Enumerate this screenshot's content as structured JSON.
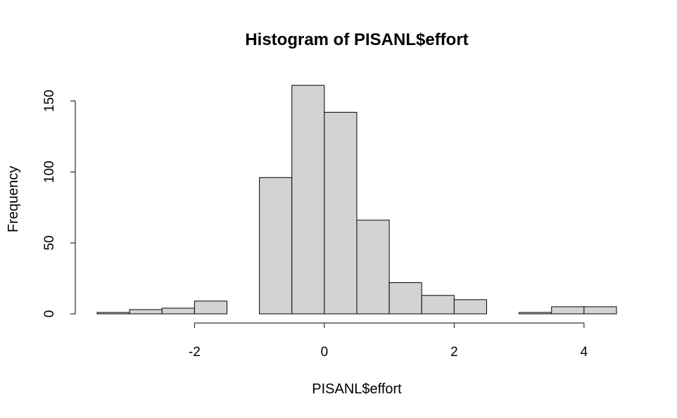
{
  "chart_data": {
    "type": "bar",
    "title": "Histogram of PISANL$effort",
    "xlabel": "PISANL$effort",
    "ylabel": "Frequency",
    "bin_edges": [
      -3.5,
      -3.0,
      -2.5,
      -2.0,
      -1.5,
      -1.0,
      -0.5,
      0.0,
      0.5,
      1.0,
      1.5,
      2.0,
      2.5,
      3.0,
      3.5,
      4.0,
      4.5
    ],
    "values": [
      1,
      3,
      4,
      9,
      0,
      96,
      161,
      142,
      66,
      22,
      13,
      10,
      0,
      1,
      5,
      5
    ],
    "xlim": [
      -3.5,
      4.5
    ],
    "ylim": [
      0,
      161
    ],
    "x_ticks": [
      -2,
      0,
      2,
      4
    ],
    "x_tick_labels": [
      "-2",
      "0",
      "2",
      "4"
    ],
    "y_ticks": [
      0,
      50,
      100,
      150
    ],
    "y_tick_labels": [
      "0",
      "50",
      "100",
      "150"
    ],
    "bar_color": "#d3d3d3",
    "edge_color": "#000000",
    "grid": false
  }
}
